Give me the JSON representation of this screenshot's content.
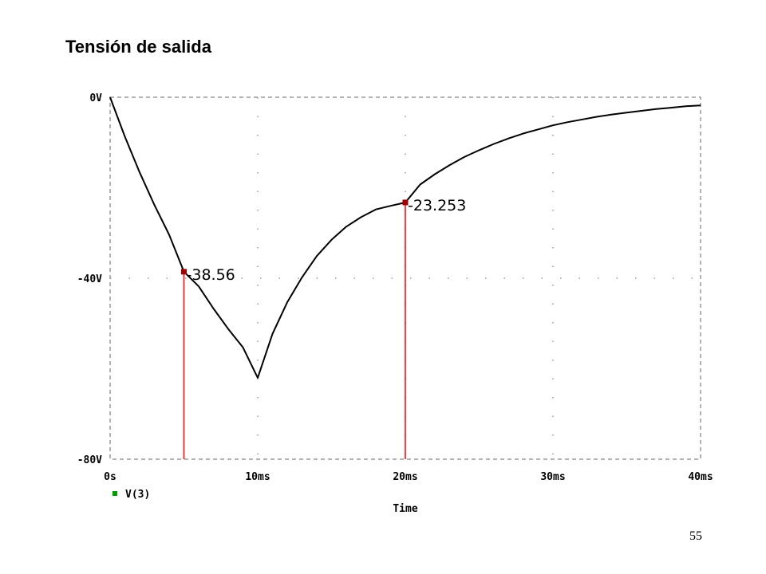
{
  "slide": {
    "title": "Tensión de salida",
    "page_number": "55"
  },
  "chart_data": {
    "type": "line",
    "title": "Tensión de salida",
    "xlabel": "Time",
    "ylabel": "",
    "xlim": [
      0,
      40
    ],
    "ylim": [
      -80,
      0
    ],
    "x_unit": "ms",
    "y_unit": "V",
    "x_ticks": [
      {
        "value": 0,
        "label": "0s"
      },
      {
        "value": 10,
        "label": "10ms"
      },
      {
        "value": 20,
        "label": "20ms"
      },
      {
        "value": 30,
        "label": "30ms"
      },
      {
        "value": 40,
        "label": "40ms"
      }
    ],
    "y_ticks": [
      {
        "value": 0,
        "label": "0V"
      },
      {
        "value": -40,
        "label": "-40V"
      },
      {
        "value": -80,
        "label": "-80V"
      }
    ],
    "grid": true,
    "legend_position": "bottom-left",
    "series": [
      {
        "name": "V(3)",
        "color": "#000000",
        "marker_color": "#00a000",
        "x": [
          0,
          1,
          2,
          3,
          4,
          5,
          6,
          7,
          8,
          9,
          10,
          11,
          12,
          13,
          14,
          15,
          16,
          17,
          18,
          19,
          20,
          21,
          22,
          23,
          24,
          25,
          26,
          27,
          28,
          29,
          30,
          31,
          32,
          33,
          34,
          35,
          36,
          37,
          38,
          39,
          40
        ],
        "y": [
          0,
          -8.7,
          -16.6,
          -23.8,
          -30.4,
          -38.56,
          -41.8,
          -46.7,
          -51.2,
          -55.3,
          -62,
          -52.3,
          -45.3,
          -39.8,
          -35.1,
          -31.5,
          -28.6,
          -26.5,
          -24.8,
          -24.0,
          -23.253,
          -19.3,
          -17.0,
          -15.0,
          -13.2,
          -11.7,
          -10.3,
          -9.1,
          -8.0,
          -7.1,
          -6.2,
          -5.5,
          -4.9,
          -4.3,
          -3.8,
          -3.4,
          -3.0,
          -2.6,
          -2.3,
          -2.0,
          -1.8
        ]
      }
    ],
    "annotations": [
      {
        "x": 5,
        "y": -38.56,
        "label": "-38.56",
        "color": "#ff0000"
      },
      {
        "x": 20,
        "y": -23.253,
        "label": "-23.253",
        "color": "#ff0000"
      }
    ],
    "colors": {
      "grid": "#9a9a9a",
      "curve": "#000000",
      "cursor": "#ff0000",
      "legend_marker": "#00a000"
    }
  }
}
